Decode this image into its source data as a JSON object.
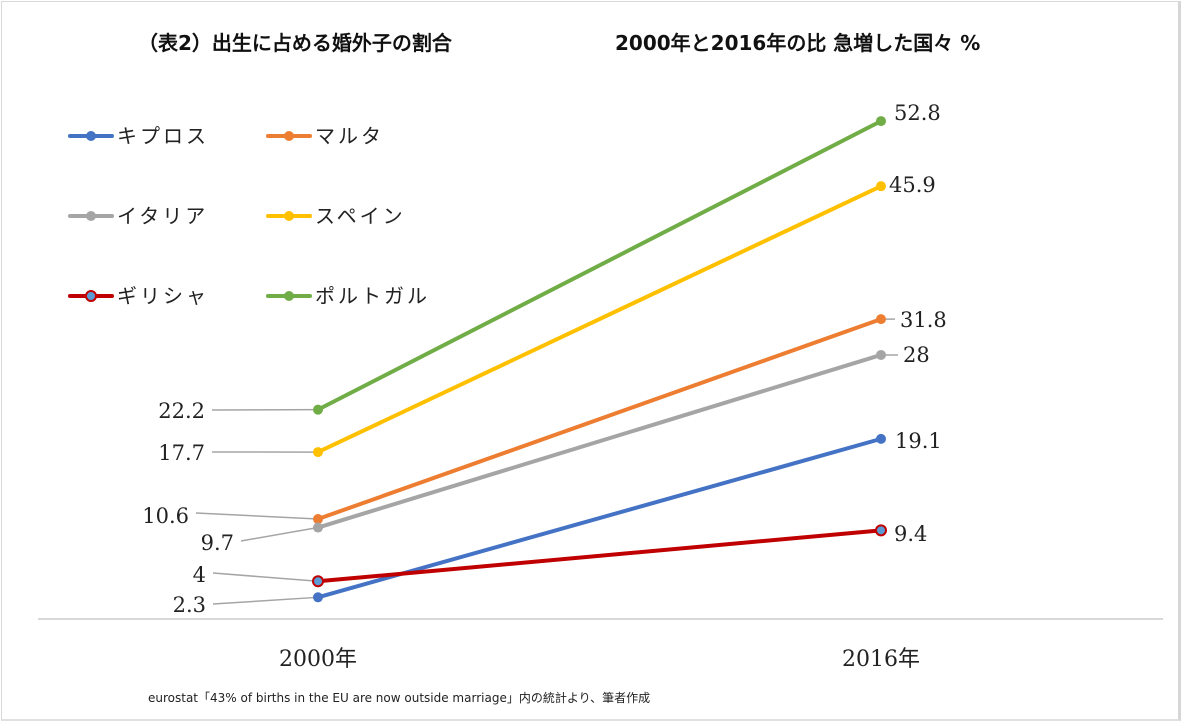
{
  "chart_data": {
    "type": "line",
    "title": "（表2）出生に占める婚外子の割合",
    "subtitle": "2000年と2016年の比 急増した国々 %",
    "xlabel": "",
    "ylabel": "",
    "categories": [
      "2000年",
      "2016年"
    ],
    "ylim": [
      0,
      55
    ],
    "grid": false,
    "legend_position": "top-left",
    "series": [
      {
        "name": "キプロス",
        "values": [
          2.3,
          19.1
        ],
        "color": "#4472c4",
        "marker_fill": "#4472c4",
        "labels": [
          "2.3",
          "19.1"
        ]
      },
      {
        "name": "マルタ",
        "values": [
          10.6,
          31.8
        ],
        "color": "#ed7d31",
        "marker_fill": "#ed7d31",
        "labels": [
          "10.6",
          "31.8"
        ]
      },
      {
        "name": "イタリア",
        "values": [
          9.7,
          28
        ],
        "color": "#a5a5a5",
        "marker_fill": "#a5a5a5",
        "labels": [
          "9.7",
          "28"
        ]
      },
      {
        "name": "スペイン",
        "values": [
          17.7,
          45.9
        ],
        "color": "#ffc000",
        "marker_fill": "#ffc000",
        "labels": [
          "17.7",
          "45.9"
        ]
      },
      {
        "name": "ギリシャ",
        "values": [
          4,
          9.4
        ],
        "color": "#c00000",
        "marker_fill": "#5b9bd5",
        "labels": [
          "4",
          "9.4"
        ]
      },
      {
        "name": "ポルトガル",
        "values": [
          22.2,
          52.8
        ],
        "color": "#70ad47",
        "marker_fill": "#70ad47",
        "labels": [
          "22.2",
          "52.8"
        ]
      }
    ],
    "source_note": "eurostat「43% of births in the EU are now outside marriage」内の統計より、筆者作成"
  },
  "header": {
    "title_left": "（表2）出生に占める婚外子の割合",
    "title_right": "2000年と2016年の比  急増した国々   %"
  }
}
